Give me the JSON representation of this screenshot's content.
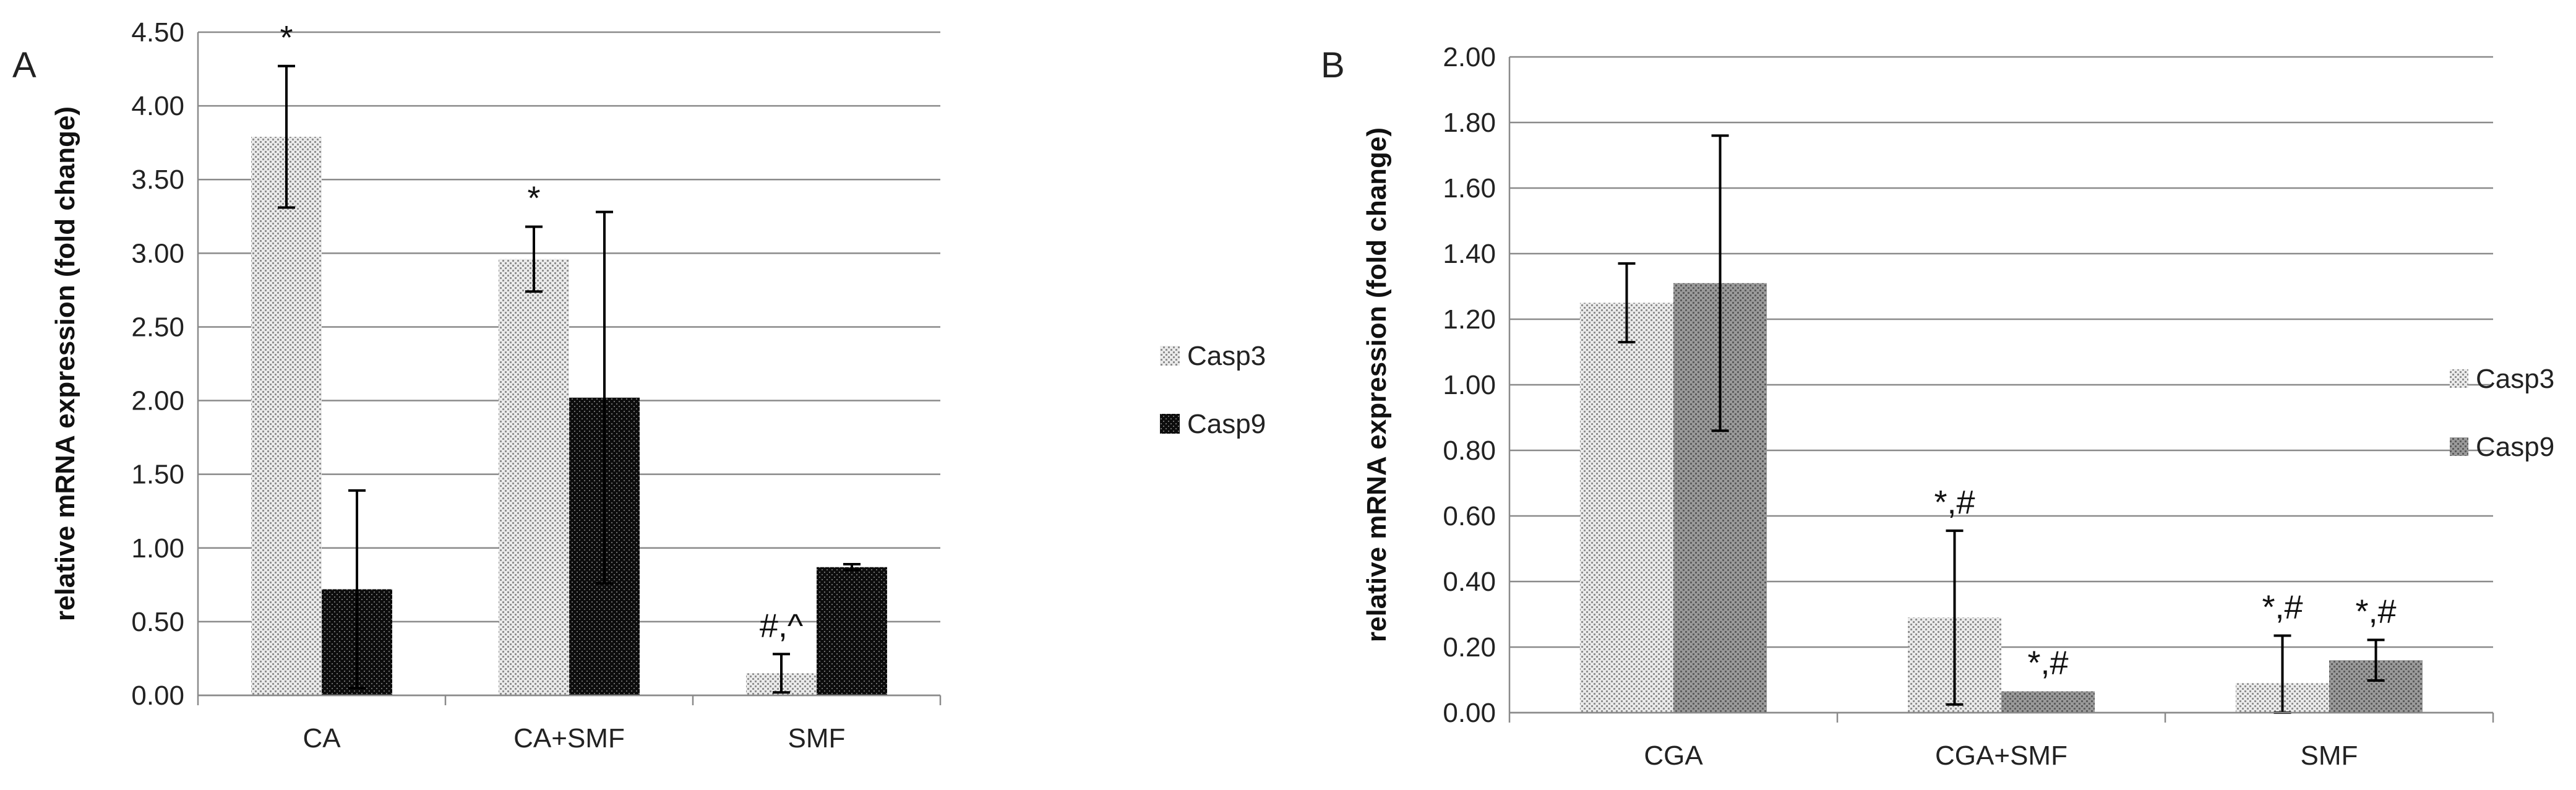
{
  "chart_data": [
    {
      "panel_label": "A",
      "type": "bar",
      "categories": [
        "CA",
        "CA+SMF",
        "SMF"
      ],
      "ylabel": "relative mRNA expression (fold change)",
      "ylim": [
        0,
        4.5
      ],
      "yticks": [
        "0.00",
        "0.50",
        "1.00",
        "1.50",
        "2.00",
        "2.50",
        "3.00",
        "3.50",
        "4.00",
        "4.50"
      ],
      "grid": true,
      "legend_position": "right",
      "series": [
        {
          "name": "Casp3",
          "color": "#c8c8c8",
          "pattern": "light-dotted",
          "values": [
            3.79,
            2.96,
            0.15
          ],
          "errors": [
            0.48,
            0.22,
            0.13
          ]
        },
        {
          "name": "Casp9",
          "color": "#111111",
          "pattern": "dark-dotted",
          "values": [
            0.72,
            2.02,
            0.87
          ],
          "errors": [
            0.67,
            1.26,
            0.02
          ]
        }
      ],
      "annotations": [
        {
          "category": 0,
          "series": 0,
          "text": "*"
        },
        {
          "category": 1,
          "series": 0,
          "text": "*"
        },
        {
          "category": 2,
          "series": 0,
          "text": "#,^"
        }
      ]
    },
    {
      "panel_label": "B",
      "type": "bar",
      "categories": [
        "CGA",
        "CGA+SMF",
        "SMF"
      ],
      "ylabel": "relative mRNA expression (fold change)",
      "ylim": [
        0,
        2.0
      ],
      "yticks": [
        "0.00",
        "0.20",
        "0.40",
        "0.60",
        "0.80",
        "1.00",
        "1.20",
        "1.40",
        "1.60",
        "1.80",
        "2.00"
      ],
      "grid": true,
      "legend_position": "right",
      "series": [
        {
          "name": "Casp3",
          "color": "#cfcfcf",
          "pattern": "light-dotted",
          "values": [
            1.25,
            0.29,
            0.09
          ],
          "errors": [
            0.12,
            0.265,
            0.145
          ]
        },
        {
          "name": "Casp9",
          "color": "#8c8c8c",
          "pattern": "medium-dotted",
          "values": [
            1.31,
            0.065,
            0.16
          ],
          "errors": [
            0.45,
            0,
            0.062
          ]
        }
      ],
      "annotations": [
        {
          "category": 1,
          "series": 0,
          "text": "*,#"
        },
        {
          "category": 1,
          "series": 1,
          "text": "*,#"
        },
        {
          "category": 2,
          "series": 0,
          "text": "*,#"
        },
        {
          "category": 2,
          "series": 1,
          "text": "*,#"
        }
      ]
    }
  ]
}
